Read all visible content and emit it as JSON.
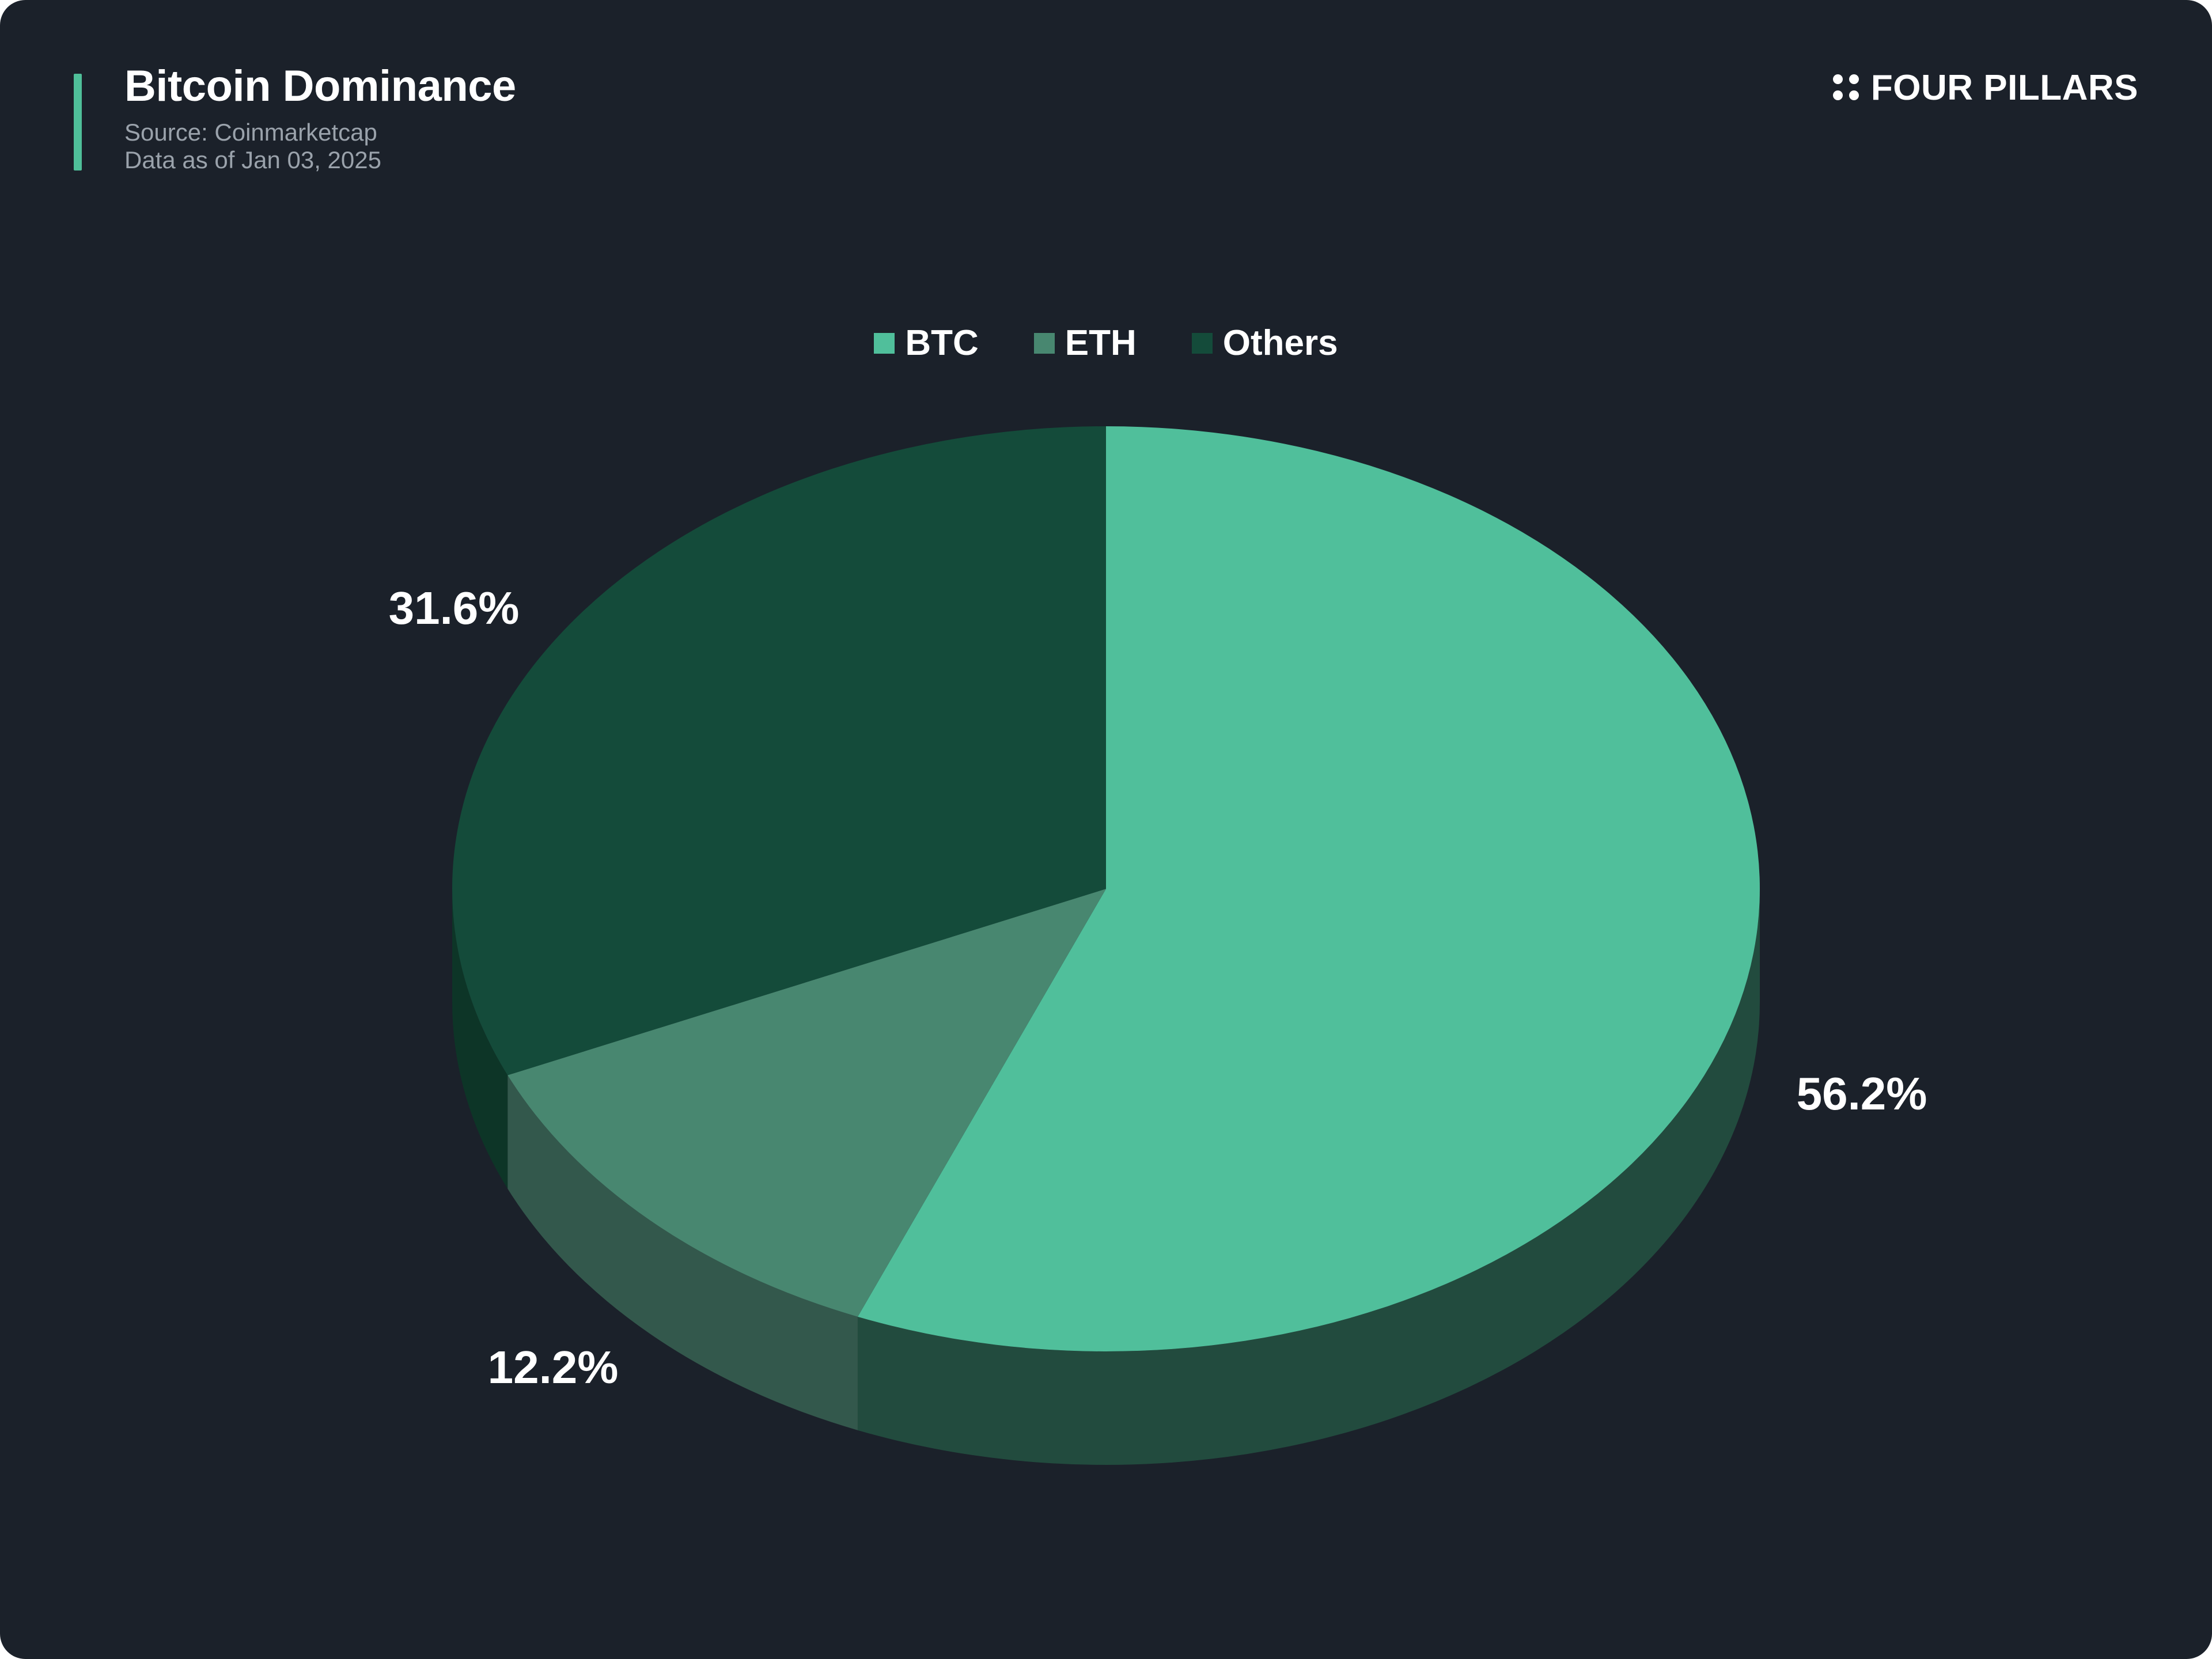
{
  "header": {
    "title": "Bitcoin Dominance",
    "source": "Source: Coinmarketcap",
    "date": "Data as of Jan 03, 2025"
  },
  "brand": {
    "name": "FOUR PILLARS",
    "icon": "four-dots-icon"
  },
  "colors": {
    "background": "#1b212a",
    "accent": "#4fbf99"
  },
  "chart_data": {
    "type": "pie",
    "style": "3d",
    "title": "",
    "legend_position": "top-center",
    "series": [
      {
        "name": "BTC",
        "value": 56.2,
        "label": "56.2%",
        "color": "#50bf9b",
        "side_color": "#224b3e"
      },
      {
        "name": "ETH",
        "value": 12.2,
        "label": "12.2%",
        "color": "#488770",
        "side_color": "#33584c"
      },
      {
        "name": "Others",
        "value": 31.6,
        "label": "31.6%",
        "color": "#144b3a",
        "side_color": "#0d3527"
      }
    ]
  }
}
